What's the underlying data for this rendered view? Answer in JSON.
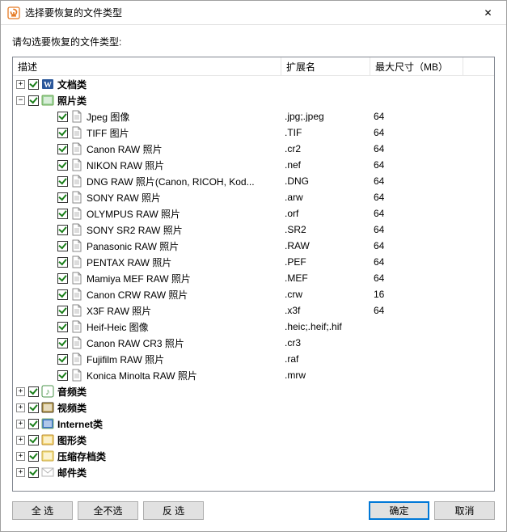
{
  "window": {
    "title": "选择要恢复的文件类型",
    "close_glyph": "✕"
  },
  "prompt_text": "请勾选要恢复的文件类型:",
  "columns": {
    "description": "描述",
    "extension": "扩展名",
    "max_size": "最大尺寸（MB）"
  },
  "categories": [
    {
      "name": "文档类",
      "expanded": false,
      "checked": true,
      "icon_color": "#2b579a",
      "icon_accent": "#ffffff",
      "icon_glyph": "W",
      "items": []
    },
    {
      "name": "照片类",
      "expanded": true,
      "checked": true,
      "icon_color": "#9fd39f",
      "icon_accent": "#6aa84f",
      "icon_glyph": "",
      "items": [
        {
          "label": "Jpeg 图像",
          "ext": ".jpg;.jpeg",
          "size": "64",
          "checked": true
        },
        {
          "label": "TIFF 图片",
          "ext": ".TIF",
          "size": "64",
          "checked": true
        },
        {
          "label": "Canon RAW 照片",
          "ext": ".cr2",
          "size": "64",
          "checked": true
        },
        {
          "label": "NIKON RAW 照片",
          "ext": ".nef",
          "size": "64",
          "checked": true
        },
        {
          "label": "DNG RAW 照片(Canon, RICOH, Kod...",
          "ext": ".DNG",
          "size": "64",
          "checked": true
        },
        {
          "label": "SONY RAW 照片",
          "ext": ".arw",
          "size": "64",
          "checked": true
        },
        {
          "label": "OLYMPUS RAW 照片",
          "ext": ".orf",
          "size": "64",
          "checked": true
        },
        {
          "label": "SONY SR2 RAW 照片",
          "ext": ".SR2",
          "size": "64",
          "checked": true
        },
        {
          "label": "Panasonic RAW 照片",
          "ext": ".RAW",
          "size": "64",
          "checked": true
        },
        {
          "label": "PENTAX RAW 照片",
          "ext": ".PEF",
          "size": "64",
          "checked": true
        },
        {
          "label": "Mamiya MEF RAW 照片",
          "ext": ".MEF",
          "size": "64",
          "checked": true
        },
        {
          "label": "Canon CRW RAW 照片",
          "ext": ".crw",
          "size": "16",
          "checked": true
        },
        {
          "label": "X3F RAW 照片",
          "ext": ".x3f",
          "size": "64",
          "checked": true
        },
        {
          "label": "Heif-Heic 图像",
          "ext": ".heic;.heif;.hif",
          "size": "",
          "checked": true
        },
        {
          "label": "Canon RAW CR3 照片",
          "ext": ".cr3",
          "size": "",
          "checked": true
        },
        {
          "label": "Fujifilm RAW 照片",
          "ext": ".raf",
          "size": "",
          "checked": true
        },
        {
          "label": "Konica Minolta RAW 照片",
          "ext": ".mrw",
          "size": "",
          "checked": true
        }
      ]
    },
    {
      "name": "音频类",
      "expanded": false,
      "checked": true,
      "icon_color": "#7cc87c",
      "icon_accent": "#4a934a",
      "icon_glyph": "♪",
      "items": []
    },
    {
      "name": "视频类",
      "expanded": false,
      "checked": true,
      "icon_color": "#c2a85e",
      "icon_accent": "#4b3b1c",
      "icon_glyph": "",
      "items": []
    },
    {
      "name": "Internet类",
      "expanded": false,
      "checked": true,
      "icon_color": "#3973c7",
      "icon_accent": "#7fb36f",
      "icon_glyph": "",
      "items": []
    },
    {
      "name": "图形类",
      "expanded": false,
      "checked": true,
      "icon_color": "#f5d97a",
      "icon_accent": "#bb8b2e",
      "icon_glyph": "",
      "items": []
    },
    {
      "name": "压缩存档类",
      "expanded": false,
      "checked": true,
      "icon_color": "#f4e28d",
      "icon_accent": "#c8a43a",
      "icon_glyph": "",
      "items": []
    },
    {
      "name": "邮件类",
      "expanded": false,
      "checked": true,
      "icon_color": "#ffffff",
      "icon_accent": "#b5b5b5",
      "icon_glyph": "✉",
      "items": []
    }
  ],
  "buttons": {
    "select_all": "全  选",
    "select_none": "全不选",
    "invert": "反  选",
    "ok": "确定",
    "cancel": "取消"
  }
}
